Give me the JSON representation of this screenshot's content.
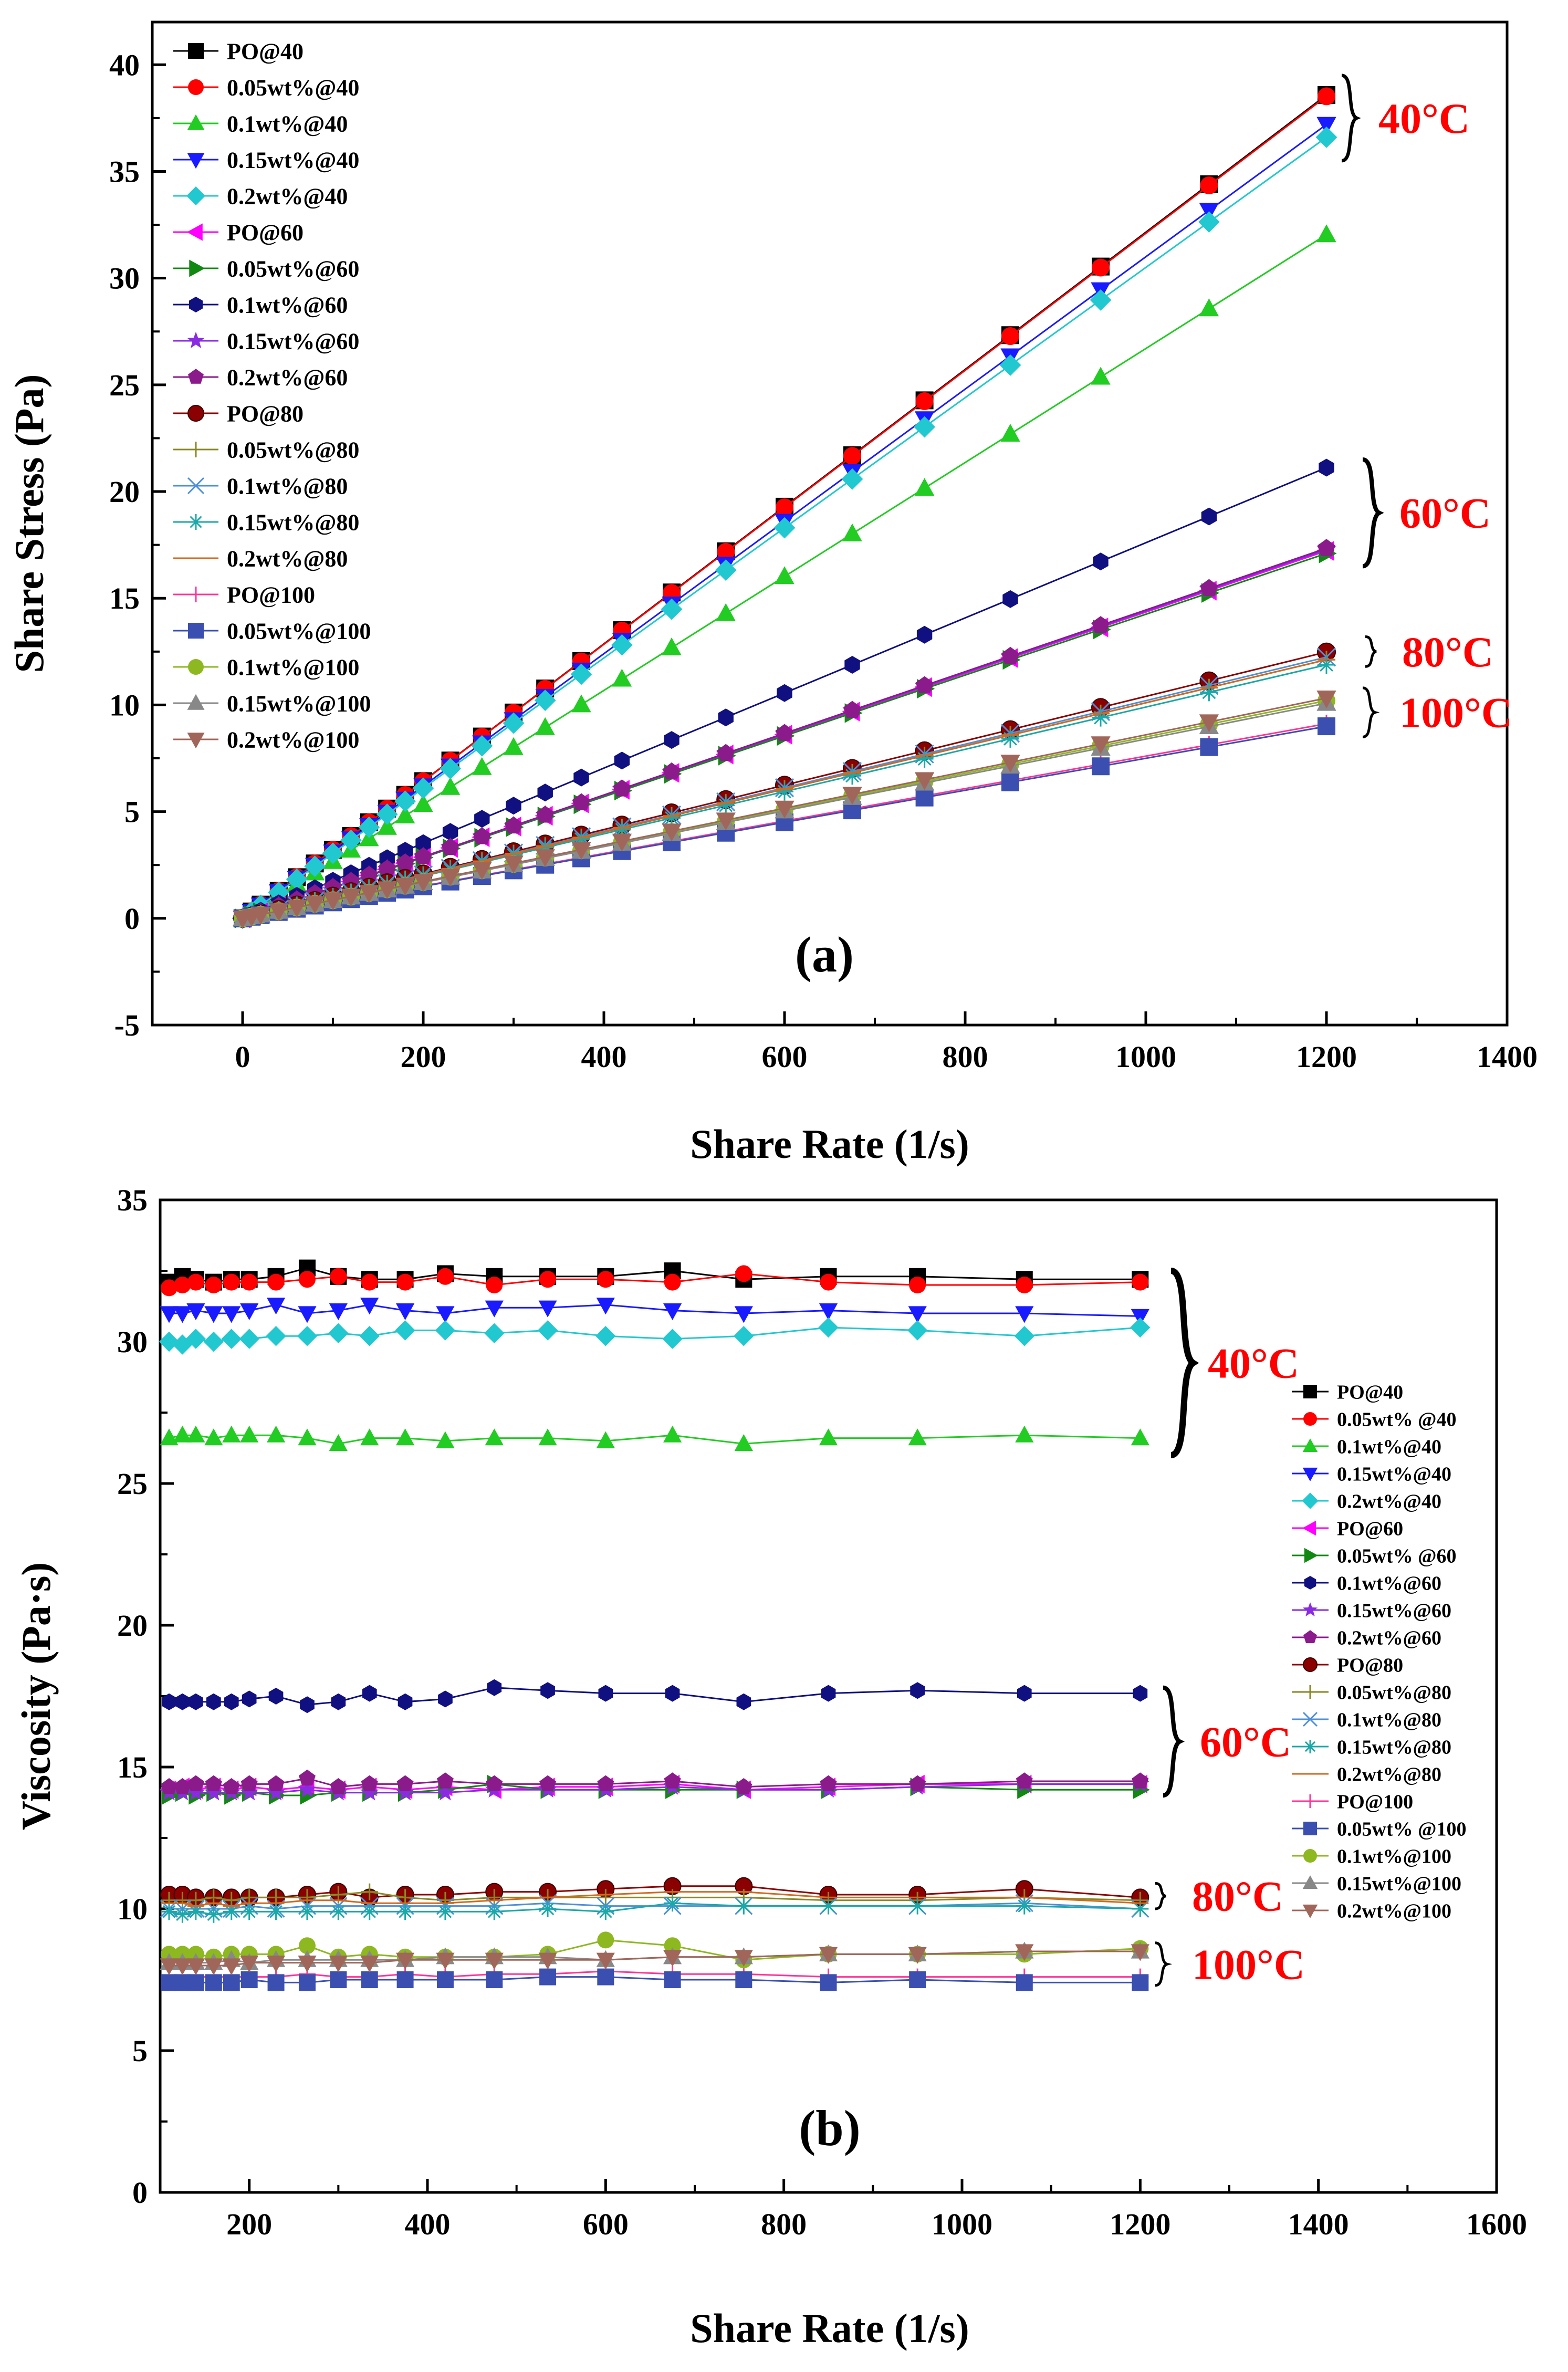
{
  "colors": {
    "temp_label": "#ff0000"
  },
  "series_styles": [
    {
      "name": "PO@40",
      "color": "#000000",
      "marker": "square"
    },
    {
      "name": "0.05wt%@40",
      "color": "#ff0000",
      "marker": "circle"
    },
    {
      "name": "0.1wt%@40",
      "color": "#22cc22",
      "marker": "triangle-up"
    },
    {
      "name": "0.15wt%@40",
      "color": "#1a1aff",
      "marker": "triangle-down"
    },
    {
      "name": "0.2wt%@40",
      "color": "#22c8d0",
      "marker": "diamond"
    },
    {
      "name": "PO@60",
      "color": "#ff00ff",
      "marker": "triangle-left"
    },
    {
      "name": "0.05wt%@60",
      "color": "#118811",
      "marker": "triangle-right"
    },
    {
      "name": "0.1wt%@60",
      "color": "#101080",
      "marker": "hexagon"
    },
    {
      "name": "0.15wt%@60",
      "color": "#8a2be2",
      "marker": "star"
    },
    {
      "name": "0.2wt%@60",
      "color": "#8b1a8b",
      "marker": "pentagon"
    },
    {
      "name": "PO@80",
      "color": "#8b0000",
      "marker": "sphere"
    },
    {
      "name": "0.05wt%@80",
      "color": "#888822",
      "marker": "plus"
    },
    {
      "name": "0.1wt%@80",
      "color": "#4f8fd8",
      "marker": "x"
    },
    {
      "name": "0.15wt%@80",
      "color": "#1aa8a8",
      "marker": "asterisk"
    },
    {
      "name": "0.2wt%@80",
      "color": "#d2691e",
      "marker": "dash"
    },
    {
      "name": "PO@100",
      "color": "#ff3399",
      "marker": "plus"
    },
    {
      "name": "0.05wt%@100",
      "color": "#3a4fb0",
      "marker": "square"
    },
    {
      "name": "0.1wt%@100",
      "color": "#8db820",
      "marker": "circle"
    },
    {
      "name": "0.15wt%@100",
      "color": "#888888",
      "marker": "triangle-up"
    },
    {
      "name": "0.2wt%@100",
      "color": "#a0665a",
      "marker": "triangle-down"
    }
  ],
  "chart_data": [
    {
      "type": "line",
      "panel_label": "(a)",
      "xlabel": "Share Rate (1/s)",
      "ylabel": "Share Stress (Pa)",
      "xlim": [
        -100,
        1400
      ],
      "ylim": [
        -5,
        42
      ],
      "xticks": [
        0,
        200,
        400,
        600,
        800,
        1000,
        1200,
        1400
      ],
      "yticks": [
        -5,
        0,
        5,
        10,
        15,
        20,
        25,
        30,
        35,
        40
      ],
      "grid": false,
      "legend_position": "top-left",
      "legend_entries": [
        "PO@40",
        "0.05wt%@40",
        "0.1wt%@40",
        "0.15wt%@40",
        "0.2wt%@40",
        "PO@60",
        "0.05wt%@60",
        "0.1wt%@60",
        "0.15wt%@60",
        "0.2wt%@60",
        "PO@80",
        "0.05wt%@80",
        "0.1wt%@80",
        "0.15wt%@80",
        "0.2wt%@80",
        "PO@100",
        "0.05wt%@100",
        "0.1wt%@100",
        "0.15wt%@100",
        "0.2wt%@100"
      ],
      "x": [
        0,
        10,
        20,
        40,
        60,
        80,
        100,
        120,
        140,
        160,
        180,
        200,
        230,
        265,
        300,
        335,
        375,
        420,
        475,
        535,
        600,
        675,
        755,
        850,
        950,
        1070,
        1200
      ],
      "series": [
        {
          "name": "PO@40",
          "slope": 0.03215
        },
        {
          "name": "0.05wt%@40",
          "slope": 0.0321
        },
        {
          "name": "0.1wt%@40",
          "slope": 0.0267
        },
        {
          "name": "0.15wt%@40",
          "slope": 0.031
        },
        {
          "name": "0.2wt%@40",
          "slope": 0.0305
        },
        {
          "name": "PO@60",
          "slope": 0.01435
        },
        {
          "name": "0.05wt%@60",
          "slope": 0.01425
        },
        {
          "name": "0.1wt%@60",
          "slope": 0.0176
        },
        {
          "name": "0.15wt%@60",
          "slope": 0.0144
        },
        {
          "name": "0.2wt%@60",
          "slope": 0.01445
        },
        {
          "name": "PO@80",
          "slope": 0.0104
        },
        {
          "name": "0.05wt%@80",
          "slope": 0.0101
        },
        {
          "name": "0.1wt%@80",
          "slope": 0.0102
        },
        {
          "name": "0.15wt%@80",
          "slope": 0.0099
        },
        {
          "name": "0.2wt%@80",
          "slope": 0.0101
        },
        {
          "name": "PO@100",
          "slope": 0.0076
        },
        {
          "name": "0.05wt%@100",
          "slope": 0.0075
        },
        {
          "name": "0.1wt%@100",
          "slope": 0.0085
        },
        {
          "name": "0.15wt%@100",
          "slope": 0.0084
        },
        {
          "name": "0.2wt%@100",
          "slope": 0.0086
        }
      ],
      "group_labels": [
        {
          "text": "40°C",
          "y_range": [
            35.5,
            39.5
          ]
        },
        {
          "text": "60°C",
          "y_range": [
            16.5,
            21.5
          ]
        },
        {
          "text": "80°C",
          "y_range": [
            11.8,
            13.2
          ]
        },
        {
          "text": "100°C",
          "y_range": [
            8.5,
            10.8
          ]
        }
      ]
    },
    {
      "type": "line",
      "panel_label": "(b)",
      "xlabel": "Share Rate (1/s)",
      "ylabel": "Viscosity (Pa·s)",
      "xlim": [
        100,
        1600
      ],
      "ylim": [
        0,
        35
      ],
      "xticks": [
        200,
        400,
        600,
        800,
        1000,
        1200,
        1400,
        1600
      ],
      "yticks": [
        0,
        5,
        10,
        15,
        20,
        25,
        30,
        35
      ],
      "grid": false,
      "legend_position": "right",
      "legend_entries": [
        "PO@40",
        "0.05wt% @40",
        "0.1wt%@40",
        "0.15wt%@40",
        "0.2wt%@40",
        "PO@60",
        "0.05wt% @60",
        "0.1wt%@60",
        "0.15wt%@60",
        "0.2wt%@60",
        "PO@80",
        "0.05wt%@80",
        "0.1wt%@80",
        "0.15wt%@80",
        "0.2wt%@80",
        "PO@100",
        "0.05wt% @100",
        "0.1wt%@100",
        "0.15wt%@100",
        "0.2wt%@100"
      ],
      "x": [
        110,
        125,
        140,
        160,
        180,
        200,
        230,
        265,
        300,
        335,
        375,
        420,
        475,
        535,
        600,
        675,
        755,
        850,
        950,
        1070,
        1200
      ],
      "series": [
        {
          "name": "PO@40",
          "values": [
            32.1,
            32.3,
            32.2,
            32.1,
            32.2,
            32.2,
            32.3,
            32.6,
            32.3,
            32.2,
            32.2,
            32.4,
            32.3,
            32.3,
            32.3,
            32.5,
            32.2,
            32.3,
            32.3,
            32.2,
            32.2
          ]
        },
        {
          "name": "0.05wt%@40",
          "values": [
            31.9,
            32.0,
            32.1,
            32.0,
            32.1,
            32.1,
            32.1,
            32.2,
            32.3,
            32.1,
            32.1,
            32.3,
            32.0,
            32.2,
            32.2,
            32.1,
            32.4,
            32.1,
            32.0,
            32.0,
            32.1
          ]
        },
        {
          "name": "0.1wt%@40",
          "values": [
            26.6,
            26.7,
            26.7,
            26.6,
            26.7,
            26.7,
            26.7,
            26.6,
            26.4,
            26.6,
            26.6,
            26.5,
            26.6,
            26.6,
            26.5,
            26.7,
            26.4,
            26.6,
            26.6,
            26.7,
            26.6
          ]
        },
        {
          "name": "0.15wt%@40",
          "values": [
            31.0,
            31.0,
            31.1,
            31.0,
            31.0,
            31.1,
            31.3,
            31.0,
            31.1,
            31.3,
            31.1,
            31.0,
            31.2,
            31.2,
            31.3,
            31.1,
            31.0,
            31.1,
            31.0,
            31.0,
            30.9
          ]
        },
        {
          "name": "0.2wt%@40",
          "values": [
            30.0,
            29.9,
            30.1,
            30.0,
            30.1,
            30.1,
            30.2,
            30.2,
            30.3,
            30.2,
            30.4,
            30.4,
            30.3,
            30.4,
            30.2,
            30.1,
            30.2,
            30.5,
            30.4,
            30.2,
            30.5
          ]
        },
        {
          "name": "PO@60",
          "values": [
            14.2,
            14.3,
            14.2,
            14.3,
            14.2,
            14.3,
            14.2,
            14.3,
            14.2,
            14.3,
            14.2,
            14.3,
            14.2,
            14.3,
            14.3,
            14.4,
            14.2,
            14.3,
            14.4,
            14.4,
            14.4
          ]
        },
        {
          "name": "0.05wt%@60",
          "values": [
            14.0,
            14.1,
            14.0,
            14.1,
            14.0,
            14.1,
            14.0,
            14.0,
            14.1,
            14.1,
            14.1,
            14.2,
            14.4,
            14.2,
            14.2,
            14.2,
            14.2,
            14.2,
            14.3,
            14.2,
            14.2
          ]
        },
        {
          "name": "0.1wt%@60",
          "values": [
            17.3,
            17.3,
            17.3,
            17.3,
            17.3,
            17.4,
            17.5,
            17.2,
            17.3,
            17.6,
            17.3,
            17.4,
            17.8,
            17.7,
            17.6,
            17.6,
            17.3,
            17.6,
            17.7,
            17.6,
            17.6
          ]
        },
        {
          "name": "0.15wt%@60",
          "values": [
            14.1,
            14.1,
            14.1,
            14.1,
            14.1,
            14.1,
            14.1,
            14.2,
            14.1,
            14.1,
            14.1,
            14.1,
            14.2,
            14.2,
            14.2,
            14.3,
            14.2,
            14.2,
            14.3,
            14.4,
            14.4
          ]
        },
        {
          "name": "0.2wt%@60",
          "values": [
            14.3,
            14.3,
            14.4,
            14.4,
            14.3,
            14.4,
            14.4,
            14.6,
            14.3,
            14.4,
            14.4,
            14.5,
            14.4,
            14.4,
            14.4,
            14.5,
            14.3,
            14.4,
            14.4,
            14.5,
            14.5
          ]
        },
        {
          "name": "PO@80",
          "values": [
            10.5,
            10.5,
            10.4,
            10.4,
            10.4,
            10.4,
            10.4,
            10.5,
            10.6,
            10.4,
            10.5,
            10.5,
            10.6,
            10.6,
            10.7,
            10.8,
            10.8,
            10.5,
            10.5,
            10.7,
            10.4
          ]
        },
        {
          "name": "0.05wt%@80",
          "values": [
            10.3,
            10.3,
            10.3,
            10.4,
            10.3,
            10.4,
            10.4,
            10.4,
            10.5,
            10.6,
            10.4,
            10.3,
            10.4,
            10.4,
            10.4,
            10.4,
            10.4,
            10.3,
            10.3,
            10.4,
            10.3
          ]
        },
        {
          "name": "0.1wt%@80",
          "values": [
            10.0,
            10.0,
            10.0,
            10.0,
            10.0,
            10.1,
            10.0,
            10.1,
            10.1,
            10.1,
            10.1,
            10.1,
            10.1,
            10.2,
            10.1,
            10.1,
            10.1,
            10.1,
            10.1,
            10.2,
            10.0
          ]
        },
        {
          "name": "0.15wt%@80",
          "values": [
            9.9,
            9.8,
            9.9,
            9.8,
            9.9,
            9.9,
            9.9,
            9.9,
            9.9,
            9.9,
            9.9,
            9.9,
            9.9,
            10.0,
            9.9,
            10.2,
            10.1,
            10.1,
            10.1,
            10.1,
            10.0
          ]
        },
        {
          "name": "0.2wt%@80",
          "values": [
            10.2,
            10.2,
            10.1,
            10.2,
            10.1,
            10.2,
            10.2,
            10.3,
            10.3,
            10.2,
            10.2,
            10.2,
            10.3,
            10.4,
            10.5,
            10.6,
            10.6,
            10.4,
            10.4,
            10.4,
            10.2
          ]
        },
        {
          "name": "PO@100",
          "values": [
            7.6,
            7.6,
            7.6,
            7.6,
            7.6,
            7.6,
            7.6,
            7.7,
            7.6,
            7.6,
            7.7,
            7.6,
            7.7,
            7.7,
            7.8,
            7.7,
            7.7,
            7.6,
            7.6,
            7.6,
            7.6
          ]
        },
        {
          "name": "0.05wt%@100",
          "values": [
            7.4,
            7.4,
            7.4,
            7.4,
            7.4,
            7.5,
            7.4,
            7.4,
            7.5,
            7.5,
            7.5,
            7.5,
            7.5,
            7.6,
            7.6,
            7.5,
            7.5,
            7.4,
            7.5,
            7.4,
            7.4
          ]
        },
        {
          "name": "0.1wt%@100",
          "values": [
            8.4,
            8.4,
            8.4,
            8.3,
            8.4,
            8.4,
            8.4,
            8.7,
            8.3,
            8.4,
            8.3,
            8.3,
            8.3,
            8.4,
            8.9,
            8.7,
            8.2,
            8.4,
            8.4,
            8.4,
            8.6
          ]
        },
        {
          "name": "0.15wt%@100",
          "values": [
            8.1,
            8.1,
            8.1,
            8.1,
            8.2,
            8.1,
            8.2,
            8.2,
            8.2,
            8.2,
            8.2,
            8.3,
            8.3,
            8.3,
            8.2,
            8.3,
            8.3,
            8.4,
            8.4,
            8.5,
            8.5
          ]
        },
        {
          "name": "0.2wt%@100",
          "values": [
            8.0,
            8.0,
            8.0,
            8.0,
            8.0,
            8.1,
            8.1,
            8.1,
            8.1,
            8.1,
            8.2,
            8.2,
            8.2,
            8.2,
            8.2,
            8.3,
            8.3,
            8.4,
            8.4,
            8.5,
            8.5
          ]
        }
      ],
      "group_labels": [
        {
          "text": "40°C",
          "y_range": [
            26.0,
            32.5
          ]
        },
        {
          "text": "60°C",
          "y_range": [
            14.0,
            17.8
          ]
        },
        {
          "text": "80°C",
          "y_range": [
            10.0,
            10.9
          ]
        },
        {
          "text": "100°C",
          "y_range": [
            7.3,
            8.8
          ]
        }
      ]
    }
  ]
}
